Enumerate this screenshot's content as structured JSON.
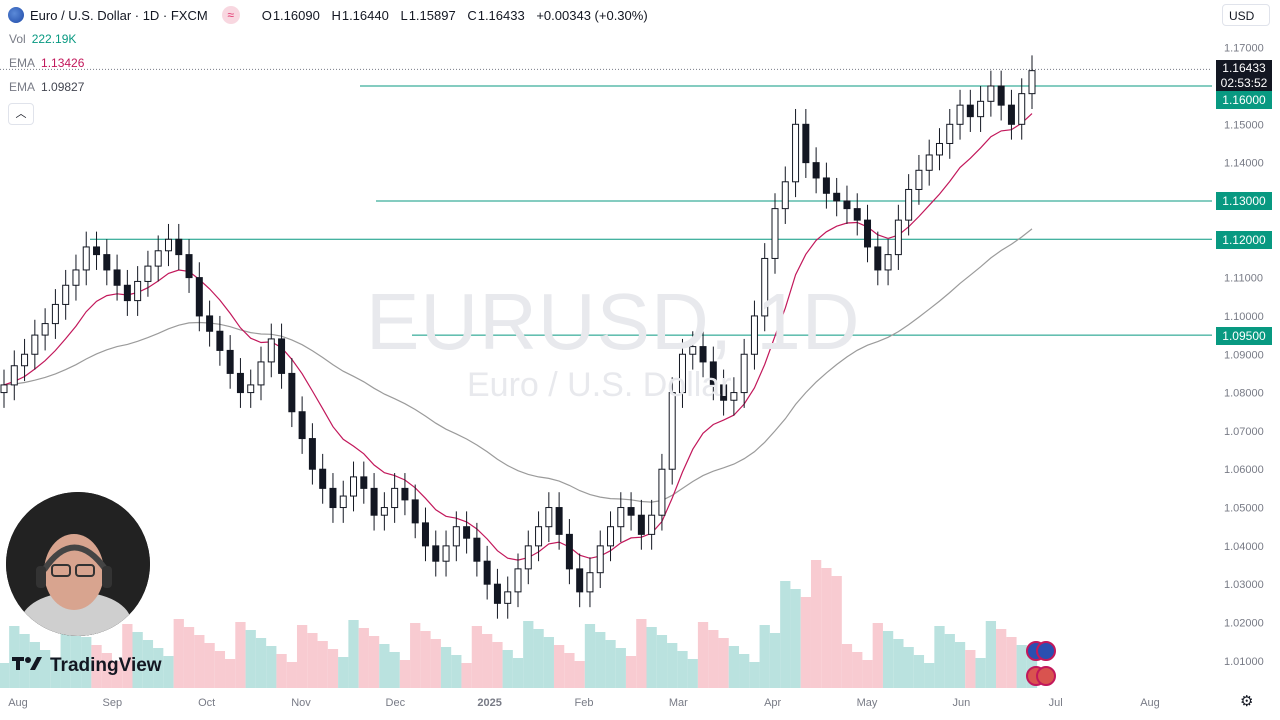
{
  "header": {
    "symbol": "Euro / U.S. Dollar · 1D · FXCM",
    "open_key": "O",
    "open": "1.16090",
    "high_key": "H",
    "high": "1.16440",
    "low_key": "L",
    "low": "1.15897",
    "close_key": "C",
    "close": "1.16433",
    "change": "+0.00343 (+0.30%)"
  },
  "indicators": [
    {
      "label": "Vol",
      "value": "222.19K",
      "color": "#089981"
    },
    {
      "label": "EMA",
      "value": "1.13426",
      "color": "#c2185b"
    },
    {
      "label": "EMA",
      "value": "1.09827",
      "color": "#434651"
    }
  ],
  "currency": "USD",
  "watermark": {
    "symbol": "EURUSD, 1D",
    "name": "Euro / U.S. Dollar"
  },
  "price_labels": {
    "last": "1.16433",
    "countdown": "02:53:52",
    "levels": [
      "1.16000",
      "1.13000",
      "1.12000",
      "1.09500"
    ]
  },
  "brand": "TradingView",
  "colors": {
    "up": "#131722",
    "down": "#131722",
    "level_line": "#089981",
    "ema_fast": "#c2185b",
    "ema_slow": "#9b9b9b",
    "vol_up": "#b2dfdb",
    "vol_down": "#f7c5cc"
  },
  "chart_data": {
    "type": "candlestick",
    "title": "EURUSD, 1D",
    "y_ticks": [
      "1.17000",
      "1.15000",
      "1.14000",
      "1.11000",
      "1.10000",
      "1.09000",
      "1.08000",
      "1.07000",
      "1.06000",
      "1.05000",
      "1.04000",
      "1.03000",
      "1.02000",
      "1.01000"
    ],
    "ylim": [
      1.005,
      1.172
    ],
    "x_ticks": [
      "Aug",
      "Sep",
      "Oct",
      "Nov",
      "Dec",
      "2025",
      "Feb",
      "Mar",
      "Apr",
      "May",
      "Jun",
      "Jul",
      "Aug"
    ],
    "horizontal_levels": [
      1.16,
      1.13,
      1.12,
      1.095
    ],
    "close_series": [
      1.082,
      1.087,
      1.09,
      1.095,
      1.098,
      1.103,
      1.108,
      1.112,
      1.118,
      1.116,
      1.112,
      1.108,
      1.104,
      1.109,
      1.113,
      1.117,
      1.12,
      1.116,
      1.11,
      1.1,
      1.096,
      1.091,
      1.085,
      1.08,
      1.082,
      1.088,
      1.094,
      1.085,
      1.075,
      1.068,
      1.06,
      1.055,
      1.05,
      1.053,
      1.058,
      1.055,
      1.048,
      1.05,
      1.055,
      1.052,
      1.046,
      1.04,
      1.036,
      1.04,
      1.045,
      1.042,
      1.036,
      1.03,
      1.025,
      1.028,
      1.034,
      1.04,
      1.045,
      1.05,
      1.043,
      1.034,
      1.028,
      1.033,
      1.04,
      1.045,
      1.05,
      1.048,
      1.043,
      1.048,
      1.06,
      1.08,
      1.09,
      1.092,
      1.088,
      1.082,
      1.078,
      1.08,
      1.09,
      1.1,
      1.115,
      1.128,
      1.135,
      1.15,
      1.14,
      1.136,
      1.132,
      1.13,
      1.128,
      1.125,
      1.118,
      1.112,
      1.116,
      1.125,
      1.133,
      1.138,
      1.142,
      1.145,
      1.15,
      1.155,
      1.152,
      1.156,
      1.16,
      1.155,
      1.15,
      1.158,
      1.164
    ],
    "ema_fast_last": 1.13426,
    "ema_slow_last": 1.09827,
    "last_price": 1.16433
  }
}
